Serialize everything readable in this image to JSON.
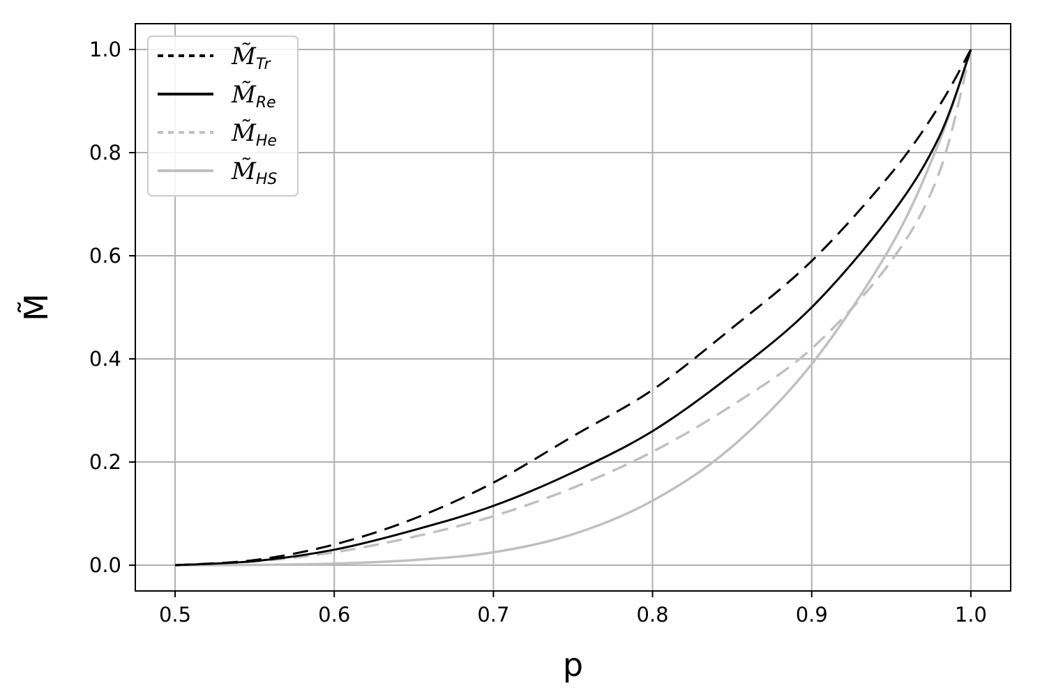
{
  "chart_data": {
    "type": "line",
    "xlabel": "p",
    "ylabel": "M̃",
    "xlim": [
      0.475,
      1.025
    ],
    "ylim": [
      -0.05,
      1.05
    ],
    "xticks": [
      0.5,
      0.6,
      0.7,
      0.8,
      0.9,
      1.0
    ],
    "xtick_labels": [
      "0.5",
      "0.6",
      "0.7",
      "0.8",
      "0.9",
      "1.0"
    ],
    "yticks": [
      0.0,
      0.2,
      0.4,
      0.6,
      0.8,
      1.0
    ],
    "ytick_labels": [
      "0.0",
      "0.2",
      "0.4",
      "0.6",
      "0.8",
      "1.0"
    ],
    "grid": true,
    "legend_position": "top-left",
    "series": [
      {
        "name_base": "M̃",
        "name_sub": "Tr",
        "legend_style": "dotted",
        "line_style": "dashed",
        "color": "#000000",
        "x": [
          0.5,
          0.55,
          0.6,
          0.65,
          0.7,
          0.75,
          0.8,
          0.85,
          0.9,
          0.95,
          0.98,
          1.0
        ],
        "y": [
          0.0,
          0.01,
          0.04,
          0.09,
          0.16,
          0.25,
          0.34,
          0.46,
          0.59,
          0.76,
          0.89,
          1.0
        ]
      },
      {
        "name_base": "M̃",
        "name_sub": "Re",
        "legend_style": "solid",
        "line_style": "solid",
        "color": "#000000",
        "x": [
          0.5,
          0.55,
          0.6,
          0.65,
          0.7,
          0.75,
          0.8,
          0.85,
          0.9,
          0.95,
          0.98,
          1.0
        ],
        "y": [
          0.0,
          0.008,
          0.03,
          0.068,
          0.115,
          0.18,
          0.26,
          0.37,
          0.5,
          0.68,
          0.83,
          1.0
        ]
      },
      {
        "name_base": "M̃",
        "name_sub": "He",
        "legend_style": "dotted",
        "line_style": "dashed",
        "color": "#c0c0c0",
        "x": [
          0.5,
          0.55,
          0.6,
          0.65,
          0.7,
          0.75,
          0.8,
          0.85,
          0.9,
          0.95,
          0.98,
          1.0
        ],
        "y": [
          0.0,
          0.007,
          0.025,
          0.055,
          0.095,
          0.15,
          0.22,
          0.31,
          0.42,
          0.59,
          0.76,
          1.0
        ]
      },
      {
        "name_base": "M̃",
        "name_sub": "HS",
        "legend_style": "solid",
        "line_style": "solid",
        "color": "#c0c0c0",
        "x": [
          0.5,
          0.55,
          0.6,
          0.65,
          0.7,
          0.75,
          0.8,
          0.85,
          0.9,
          0.95,
          0.98,
          1.0
        ],
        "y": [
          0.0,
          0.0005,
          0.003,
          0.01,
          0.025,
          0.06,
          0.125,
          0.23,
          0.39,
          0.62,
          0.82,
          1.0
        ]
      }
    ]
  }
}
